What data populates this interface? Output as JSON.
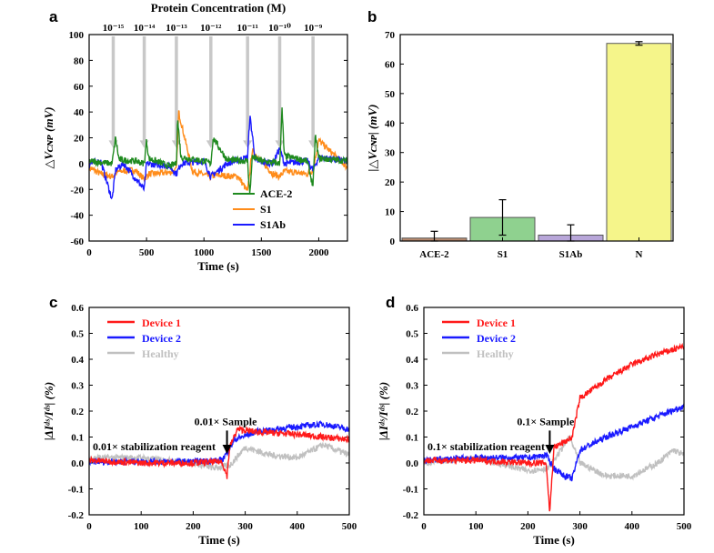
{
  "figure": {
    "panels": [
      "a",
      "b",
      "c",
      "d"
    ]
  },
  "chart_data": [
    {
      "panel": "a",
      "type": "line",
      "title": "Protein Concentration (M)",
      "xlabel": "Time (s)",
      "ylabel": "△Vᴄɴᴘ (mV)",
      "xlim": [
        0,
        2250
      ],
      "ylim": [
        -60,
        100
      ],
      "xticks": [
        0,
        500,
        1000,
        1500,
        2000
      ],
      "yticks": [
        -60,
        -40,
        -20,
        0,
        20,
        40,
        60,
        80,
        100
      ],
      "legend_position": "bottom-right",
      "annotations": [
        {
          "label": "10⁻¹⁵",
          "x": 210
        },
        {
          "label": "10⁻¹⁴",
          "x": 480
        },
        {
          "label": "10⁻¹³",
          "x": 760
        },
        {
          "label": "10⁻¹²",
          "x": 1060
        },
        {
          "label": "10⁻¹¹",
          "x": 1380
        },
        {
          "label": "10⁻¹⁰",
          "x": 1660
        },
        {
          "label": "10⁻⁹",
          "x": 1950
        }
      ],
      "series": [
        {
          "name": "ACE-2",
          "color": "#1f8a1f",
          "x": [
            0,
            100,
            200,
            230,
            260,
            400,
            480,
            500,
            520,
            700,
            760,
            770,
            800,
            1000,
            1060,
            1080,
            1200,
            1380,
            1400,
            1420,
            1500,
            1660,
            1680,
            1700,
            1900,
            1950,
            1970,
            2000,
            2250
          ],
          "y": [
            2,
            1,
            0,
            20,
            3,
            2,
            0,
            18,
            4,
            -2,
            0,
            35,
            5,
            2,
            0,
            20,
            3,
            2,
            -25,
            5,
            2,
            0,
            42,
            6,
            2,
            -18,
            22,
            4,
            2
          ]
        },
        {
          "name": "S1",
          "color": "#ff8c1a",
          "x": [
            0,
            100,
            200,
            260,
            400,
            480,
            520,
            700,
            760,
            780,
            900,
            1060,
            1100,
            1300,
            1380,
            1420,
            1600,
            1660,
            1700,
            1900,
            1950,
            2000,
            2250
          ],
          "y": [
            -3,
            -8,
            -10,
            -6,
            -5,
            -12,
            -8,
            -7,
            -5,
            40,
            -6,
            -10,
            -9,
            -10,
            -22,
            10,
            -8,
            -10,
            -6,
            -8,
            -5,
            18,
            -3
          ]
        },
        {
          "name": "S1Ab",
          "color": "#1a1aff",
          "x": [
            0,
            100,
            200,
            230,
            300,
            480,
            500,
            700,
            760,
            800,
            1000,
            1060,
            1200,
            1380,
            1400,
            1450,
            1600,
            1660,
            1700,
            1900,
            1950,
            2000,
            2250
          ],
          "y": [
            0,
            2,
            -28,
            -5,
            0,
            -20,
            0,
            -2,
            -8,
            0,
            2,
            -10,
            0,
            5,
            37,
            2,
            0,
            12,
            0,
            2,
            -5,
            5,
            2
          ]
        }
      ]
    },
    {
      "panel": "b",
      "type": "bar",
      "xlabel": "",
      "ylabel": "|△Vᴄɴᴘ| (mV)",
      "ylim": [
        0,
        70
      ],
      "yticks": [
        0,
        10,
        20,
        30,
        40,
        50,
        60,
        70
      ],
      "categories": [
        "ACE-2",
        "S1",
        "S1Ab",
        "N"
      ],
      "values": [
        1,
        8,
        2,
        67
      ],
      "errors": [
        2.3,
        6.0,
        3.5,
        0.6
      ],
      "colors": [
        "#b88a6e",
        "#8fd18f",
        "#b8a6d9",
        "#f5f58a"
      ]
    },
    {
      "panel": "c",
      "type": "line",
      "xlabel": "Time (s)",
      "ylabel": "|ΔIᵈˢ/Iᵈˢ| (%)",
      "xlim": [
        0,
        500
      ],
      "ylim": [
        -0.2,
        0.6
      ],
      "xticks": [
        0,
        100,
        200,
        300,
        400,
        500
      ],
      "yticks": [
        -0.2,
        -0.1,
        0.0,
        0.1,
        0.2,
        0.3,
        0.4,
        0.5,
        0.6
      ],
      "legend_position": "top-left",
      "annotations": [
        {
          "label": "0.01× Sample",
          "arrow_x": 265
        },
        {
          "label": "0.01× stabilization reagent"
        }
      ],
      "series": [
        {
          "name": "Device 1",
          "color": "#ff1a1a",
          "x": [
            0,
            100,
            200,
            255,
            265,
            270,
            285,
            320,
            400,
            450,
            500
          ],
          "y": [
            0.01,
            0.0,
            0.0,
            0.005,
            -0.05,
            0.06,
            0.13,
            0.12,
            0.11,
            0.1,
            0.09
          ]
        },
        {
          "name": "Device 2",
          "color": "#1a1aff",
          "x": [
            0,
            100,
            200,
            255,
            265,
            280,
            320,
            400,
            450,
            500
          ],
          "y": [
            0.005,
            0.005,
            0.005,
            0.01,
            0.04,
            0.09,
            0.12,
            0.14,
            0.15,
            0.13
          ]
        },
        {
          "name": "Healthy",
          "color": "#c0c0c0",
          "x": [
            0,
            100,
            200,
            240,
            270,
            300,
            350,
            400,
            450,
            500
          ],
          "y": [
            0.02,
            0.02,
            0.0,
            -0.02,
            -0.01,
            0.06,
            0.03,
            0.02,
            0.07,
            0.03
          ]
        }
      ]
    },
    {
      "panel": "d",
      "type": "line",
      "xlabel": "Time (s)",
      "ylabel": "|ΔIᵈˢ/Iᵈˢ| (%)",
      "xlim": [
        0,
        500
      ],
      "ylim": [
        -0.2,
        0.6
      ],
      "xticks": [
        0,
        100,
        200,
        300,
        400,
        500
      ],
      "yticks": [
        -0.2,
        -0.1,
        0.0,
        0.1,
        0.2,
        0.3,
        0.4,
        0.5,
        0.6
      ],
      "legend_position": "top-left",
      "annotations": [
        {
          "label": "0.1× Sample",
          "arrow_x": 242
        },
        {
          "label": "0.1× stabilization reagent"
        }
      ],
      "series": [
        {
          "name": "Device 1",
          "color": "#ff1a1a",
          "x": [
            0,
            100,
            200,
            235,
            242,
            250,
            270,
            285,
            300,
            350,
            400,
            450,
            500
          ],
          "y": [
            0.01,
            0.01,
            0.0,
            0.0,
            -0.19,
            0.06,
            0.08,
            0.1,
            0.25,
            0.32,
            0.38,
            0.42,
            0.45
          ]
        },
        {
          "name": "Device 2",
          "color": "#1a1aff",
          "x": [
            0,
            100,
            200,
            235,
            250,
            270,
            285,
            300,
            350,
            400,
            450,
            500
          ],
          "y": [
            0.01,
            0.02,
            0.02,
            0.03,
            -0.02,
            -0.05,
            -0.06,
            0.05,
            0.1,
            0.14,
            0.18,
            0.22
          ]
        },
        {
          "name": "Healthy",
          "color": "#c0c0c0",
          "x": [
            0,
            100,
            200,
            240,
            280,
            300,
            350,
            400,
            450,
            480,
            500
          ],
          "y": [
            0.0,
            0.02,
            -0.03,
            -0.02,
            0.1,
            0.0,
            -0.05,
            -0.05,
            0.0,
            0.05,
            0.03
          ]
        }
      ]
    }
  ]
}
